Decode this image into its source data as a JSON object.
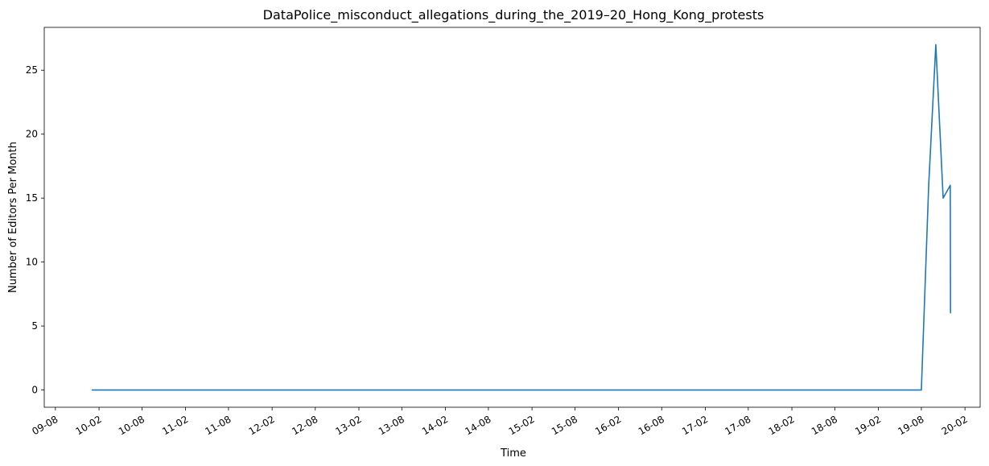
{
  "chart_data": {
    "type": "line",
    "title": "DataPolice_misconduct_allegations_during_the_2019–20_Hong_Kong_protests",
    "xlabel": "Time",
    "ylabel": "Number of Editors Per Month",
    "x_tick_labels": [
      "09-08",
      "10-02",
      "10-08",
      "11-02",
      "11-08",
      "12-02",
      "12-08",
      "13-02",
      "13-08",
      "14-02",
      "14-08",
      "15-02",
      "15-08",
      "16-02",
      "16-08",
      "17-02",
      "17-08",
      "18-02",
      "18-08",
      "19-02",
      "19-08",
      "20-02"
    ],
    "x_tick_dates": [
      "2009-08-01",
      "2010-02-01",
      "2010-08-01",
      "2011-02-01",
      "2011-08-01",
      "2012-02-01",
      "2012-08-01",
      "2013-02-01",
      "2013-08-01",
      "2014-02-01",
      "2014-08-01",
      "2015-02-01",
      "2015-08-01",
      "2016-02-01",
      "2016-08-01",
      "2017-02-01",
      "2017-08-01",
      "2018-02-01",
      "2018-08-01",
      "2019-02-01",
      "2019-08-01",
      "2020-02-01"
    ],
    "y_ticks": [
      0,
      5,
      10,
      15,
      20,
      25
    ],
    "ylim": [
      -1.35,
      28.35
    ],
    "xlim": [
      "2009-06-15",
      "2020-04-05"
    ],
    "grid": false,
    "series": [
      {
        "color": "#1f77b4",
        "points": [
          {
            "x": "2010-01-01",
            "y": 0
          },
          {
            "x": "2019-08-01",
            "y": 0
          },
          {
            "x": "2019-09-01",
            "y": 16
          },
          {
            "x": "2019-10-01",
            "y": 27
          },
          {
            "x": "2019-11-01",
            "y": 15
          },
          {
            "x": "2019-12-01",
            "y": 16
          },
          {
            "x": "2019-12-02",
            "y": 6
          }
        ]
      }
    ]
  }
}
